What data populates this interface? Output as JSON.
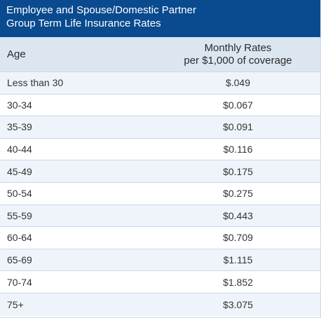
{
  "title": {
    "line1": "Employee and Spouse/Domestic Partner",
    "line2": "Group Term Life Insurance Rates"
  },
  "header": {
    "age": "Age",
    "rate_line1": "Monthly Rates",
    "rate_line2": "per $1,000 of coverage"
  },
  "rows": [
    {
      "age": "Less than 30",
      "rate": "$.049"
    },
    {
      "age": "30-34",
      "rate": "$0.067"
    },
    {
      "age": "35-39",
      "rate": "$0.091"
    },
    {
      "age": "40-44",
      "rate": "$0.116"
    },
    {
      "age": "45-49",
      "rate": "$0.175"
    },
    {
      "age": "50-54",
      "rate": "$0.275"
    },
    {
      "age": "55-59",
      "rate": "$0.443"
    },
    {
      "age": "60-64",
      "rate": "$0.709"
    },
    {
      "age": "65-69",
      "rate": "$1.115"
    },
    {
      "age": "70-74",
      "rate": "$1.852"
    },
    {
      "age": "75+",
      "rate": "$3.075"
    }
  ],
  "colors": {
    "title_bg": "#0a4a8f",
    "header_bg": "#dbe6f1",
    "stripe_bg": "#eef4fa",
    "border": "#c9d9ea"
  }
}
